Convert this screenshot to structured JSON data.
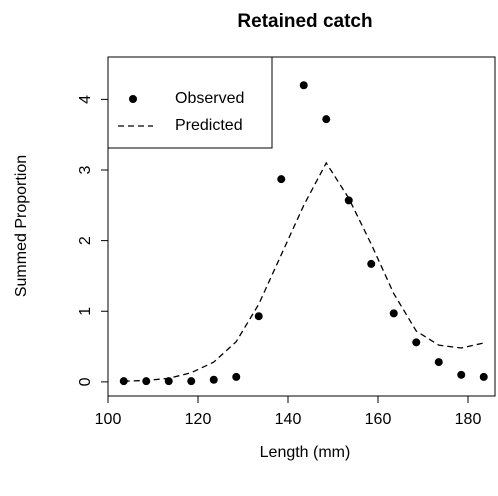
{
  "chart_data": {
    "type": "scatter",
    "title": "Retained catch",
    "x_label": "Length (mm)",
    "y_label": "Summed Proportion",
    "x": [
      103.5,
      108.5,
      113.5,
      118.5,
      123.5,
      128.5,
      133.5,
      138.5,
      143.5,
      148.5,
      153.5,
      158.5,
      163.5,
      168.5,
      173.5,
      178.5,
      183.5
    ],
    "series": [
      {
        "name": "Observed",
        "color": "#000000",
        "style": "points",
        "values": [
          0.01,
          0.01,
          0.01,
          0.01,
          0.03,
          0.07,
          0.93,
          2.87,
          4.2,
          3.72,
          2.57,
          1.67,
          0.97,
          0.56,
          0.28,
          0.1,
          0.07
        ]
      },
      {
        "name": "Predicted",
        "color": "#000000",
        "style": "dashed",
        "values": [
          0.01,
          0.02,
          0.05,
          0.13,
          0.28,
          0.57,
          1.1,
          1.8,
          2.5,
          3.1,
          2.6,
          1.95,
          1.25,
          0.72,
          0.52,
          0.48,
          0.55
        ]
      }
    ],
    "xlim": [
      100,
      186
    ],
    "ylim": [
      -0.2,
      4.6
    ],
    "xticks": [
      100,
      120,
      140,
      160,
      180
    ],
    "yticks": [
      0,
      1,
      2,
      3,
      4
    ],
    "legend": "top-left"
  }
}
